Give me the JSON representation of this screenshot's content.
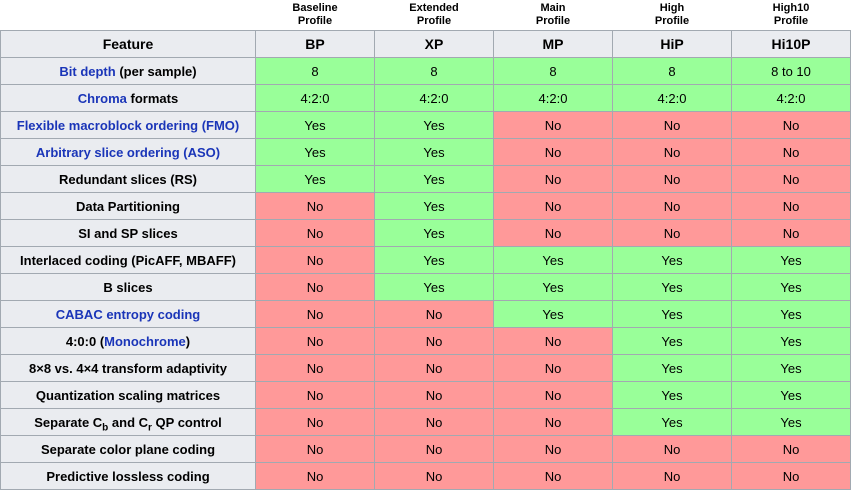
{
  "colors": {
    "yes_bg": "#99ff99",
    "no_bg": "#ff9999",
    "header_bg": "#eaecf0",
    "border": "#a2a9b1",
    "link_blue": "#1a35b8",
    "page_bg": "#ffffff"
  },
  "table": {
    "feature_header": "Feature",
    "profiles": [
      {
        "name": "Baseline\nProfile",
        "abbr": "BP"
      },
      {
        "name": "Extended\nProfile",
        "abbr": "XP"
      },
      {
        "name": "Main\nProfile",
        "abbr": "MP"
      },
      {
        "name": "High\nProfile",
        "abbr": "HiP"
      },
      {
        "name": "High10\nProfile",
        "abbr": "Hi10P"
      }
    ],
    "rows": [
      {
        "label_parts": [
          {
            "text": "Bit depth",
            "link": true
          },
          {
            "text": " (per sample)"
          }
        ],
        "values": [
          "8",
          "8",
          "8",
          "8",
          "8 to 10"
        ],
        "support": [
          true,
          true,
          true,
          true,
          true
        ]
      },
      {
        "label_parts": [
          {
            "text": "Chroma",
            "link": true
          },
          {
            "text": " formats"
          }
        ],
        "values": [
          "4:2:0",
          "4:2:0",
          "4:2:0",
          "4:2:0",
          "4:2:0"
        ],
        "support": [
          true,
          true,
          true,
          true,
          true
        ]
      },
      {
        "label_parts": [
          {
            "text": "Flexible macroblock ordering (FMO)",
            "link": true
          }
        ],
        "values": [
          "Yes",
          "Yes",
          "No",
          "No",
          "No"
        ],
        "support": [
          true,
          true,
          false,
          false,
          false
        ]
      },
      {
        "label_parts": [
          {
            "text": "Arbitrary slice ordering (ASO)",
            "link": true
          }
        ],
        "values": [
          "Yes",
          "Yes",
          "No",
          "No",
          "No"
        ],
        "support": [
          true,
          true,
          false,
          false,
          false
        ]
      },
      {
        "label_parts": [
          {
            "text": "Redundant slices (RS)"
          }
        ],
        "values": [
          "Yes",
          "Yes",
          "No",
          "No",
          "No"
        ],
        "support": [
          true,
          true,
          false,
          false,
          false
        ]
      },
      {
        "label_parts": [
          {
            "text": "Data Partitioning"
          }
        ],
        "values": [
          "No",
          "Yes",
          "No",
          "No",
          "No"
        ],
        "support": [
          false,
          true,
          false,
          false,
          false
        ]
      },
      {
        "label_parts": [
          {
            "text": "SI and SP slices"
          }
        ],
        "values": [
          "No",
          "Yes",
          "No",
          "No",
          "No"
        ],
        "support": [
          false,
          true,
          false,
          false,
          false
        ]
      },
      {
        "label_parts": [
          {
            "text": "Interlaced coding (PicAFF, MBAFF)"
          }
        ],
        "values": [
          "No",
          "Yes",
          "Yes",
          "Yes",
          "Yes"
        ],
        "support": [
          false,
          true,
          true,
          true,
          true
        ]
      },
      {
        "label_parts": [
          {
            "text": "B slices"
          }
        ],
        "values": [
          "No",
          "Yes",
          "Yes",
          "Yes",
          "Yes"
        ],
        "support": [
          false,
          true,
          true,
          true,
          true
        ]
      },
      {
        "label_parts": [
          {
            "text": "CABAC entropy coding",
            "link": true
          }
        ],
        "values": [
          "No",
          "No",
          "Yes",
          "Yes",
          "Yes"
        ],
        "support": [
          false,
          false,
          true,
          true,
          true
        ]
      },
      {
        "label_parts": [
          {
            "text": "4:0:0 ("
          },
          {
            "text": "Monochrome",
            "link": true
          },
          {
            "text": ")"
          }
        ],
        "values": [
          "No",
          "No",
          "No",
          "Yes",
          "Yes"
        ],
        "support": [
          false,
          false,
          false,
          true,
          true
        ]
      },
      {
        "label_parts": [
          {
            "text": "8×8 vs. 4×4 transform adaptivity"
          }
        ],
        "values": [
          "No",
          "No",
          "No",
          "Yes",
          "Yes"
        ],
        "support": [
          false,
          false,
          false,
          true,
          true
        ]
      },
      {
        "label_parts": [
          {
            "text": "Quantization scaling matrices"
          }
        ],
        "values": [
          "No",
          "No",
          "No",
          "Yes",
          "Yes"
        ],
        "support": [
          false,
          false,
          false,
          true,
          true
        ]
      },
      {
        "label_parts": [
          {
            "text": "Separate C"
          },
          {
            "text": "b",
            "sub": true
          },
          {
            "text": " and C"
          },
          {
            "text": "r",
            "sub": true
          },
          {
            "text": " QP control"
          }
        ],
        "values": [
          "No",
          "No",
          "No",
          "Yes",
          "Yes"
        ],
        "support": [
          false,
          false,
          false,
          true,
          true
        ]
      },
      {
        "label_parts": [
          {
            "text": "Separate color plane coding"
          }
        ],
        "values": [
          "No",
          "No",
          "No",
          "No",
          "No"
        ],
        "support": [
          false,
          false,
          false,
          false,
          false
        ]
      },
      {
        "label_parts": [
          {
            "text": "Predictive lossless coding"
          }
        ],
        "values": [
          "No",
          "No",
          "No",
          "No",
          "No"
        ],
        "support": [
          false,
          false,
          false,
          false,
          false
        ]
      }
    ]
  }
}
